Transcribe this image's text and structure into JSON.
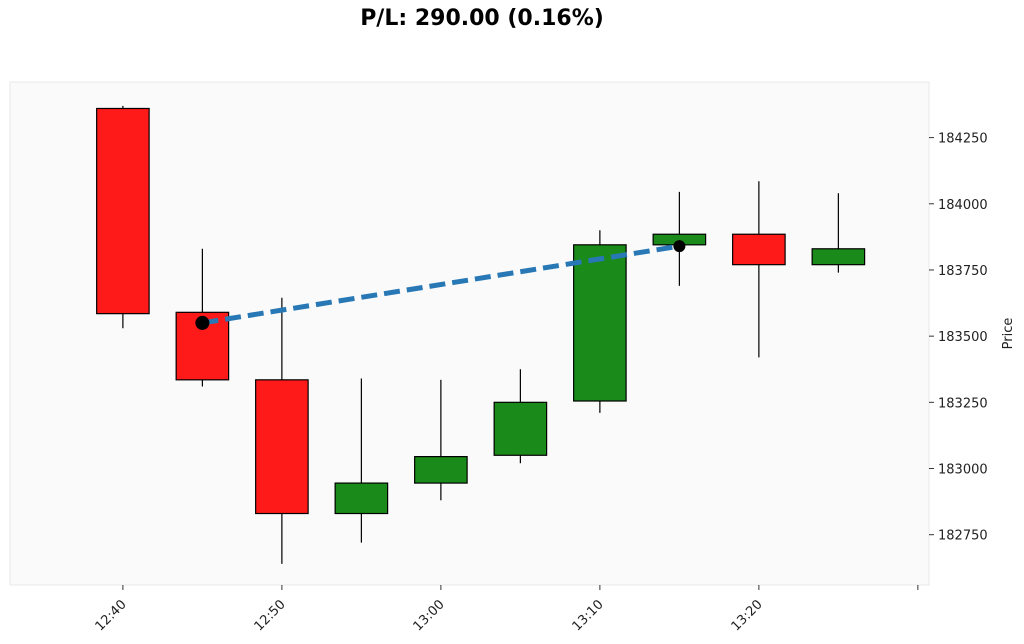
{
  "chart_data": {
    "type": "candlestick",
    "title": "P/L: 290.00 (0.16%)",
    "ylabel": "Price",
    "xlabel": "",
    "ylim": [
      182560,
      184460
    ],
    "y_ticks": [
      182750,
      183000,
      183250,
      183500,
      183750,
      184000,
      184250
    ],
    "x_ticks": [
      "12:40",
      "12:50",
      "13:00",
      "13:10",
      "13:20",
      ""
    ],
    "x_tick_minutes": [
      0,
      10,
      20,
      30,
      40,
      50
    ],
    "x_range_minutes": [
      -7.1,
      50.7
    ],
    "candle_width_minutes": 3.3,
    "colors": {
      "up": "#1a8a1a",
      "down": "#ff1a1a",
      "background": "#fafafa",
      "trade_line": "#2878b5",
      "marker": "#000000"
    },
    "candles": [
      {
        "t": "12:40",
        "m": 0,
        "open": 184360,
        "high": 184370,
        "low": 183530,
        "close": 183585
      },
      {
        "t": "12:45",
        "m": 5,
        "open": 183590,
        "high": 183830,
        "low": 183310,
        "close": 183335
      },
      {
        "t": "12:50",
        "m": 10,
        "open": 183335,
        "high": 183645,
        "low": 182640,
        "close": 182830
      },
      {
        "t": "12:55",
        "m": 15,
        "open": 182830,
        "high": 183340,
        "low": 182720,
        "close": 182945
      },
      {
        "t": "13:00",
        "m": 20,
        "open": 182945,
        "high": 183335,
        "low": 182880,
        "close": 183045
      },
      {
        "t": "13:05",
        "m": 25,
        "open": 183050,
        "high": 183375,
        "low": 183020,
        "close": 183250
      },
      {
        "t": "13:10",
        "m": 30,
        "open": 183255,
        "high": 183900,
        "low": 183210,
        "close": 183845
      },
      {
        "t": "13:15",
        "m": 35,
        "open": 183845,
        "high": 184045,
        "low": 183690,
        "close": 183885
      },
      {
        "t": "13:20",
        "m": 40,
        "open": 183885,
        "high": 184085,
        "low": 183420,
        "close": 183770
      },
      {
        "t": "13:25",
        "m": 45,
        "open": 183770,
        "high": 184040,
        "low": 183740,
        "close": 183830
      }
    ],
    "trades": [
      {
        "entry_m": 5,
        "entry_price": 183550,
        "exit_m": 35,
        "exit_price": 183840
      }
    ]
  }
}
